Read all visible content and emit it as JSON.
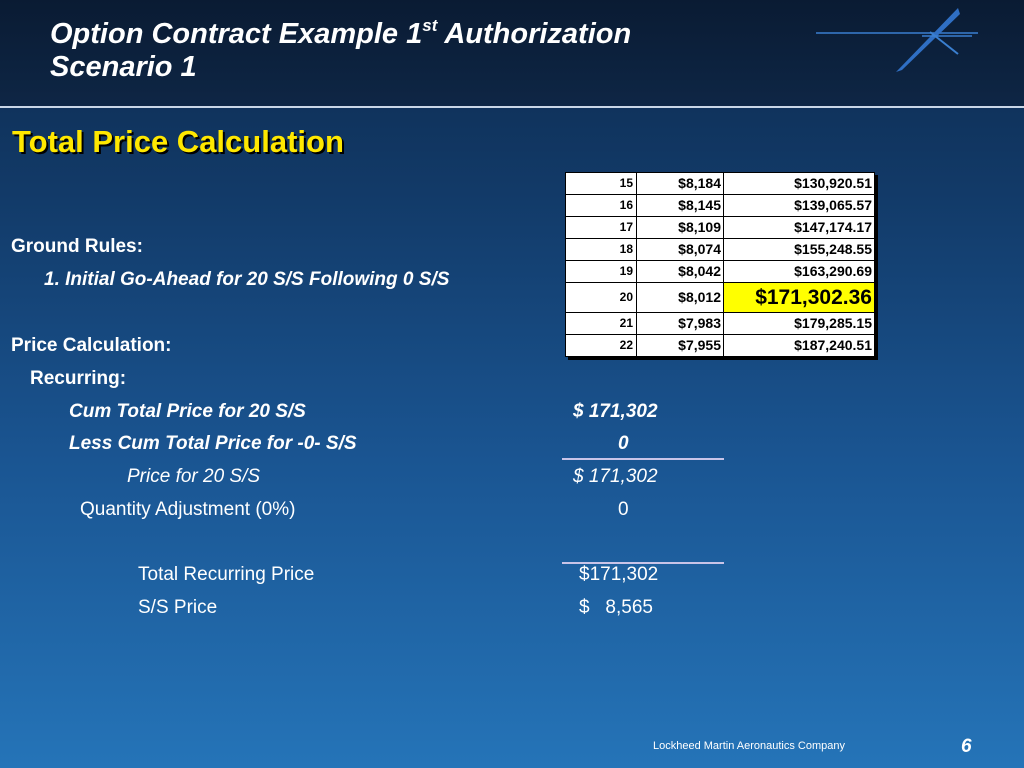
{
  "header": {
    "title_line1_pre": "Option Contract Example 1",
    "title_sup": "st",
    "title_line1_post": " Authorization",
    "title_line2": "Scenario 1"
  },
  "subtitle": "Total Price Calculation",
  "ground_rules": {
    "heading": "Ground Rules:",
    "item1": "1. Initial Go-Ahead for 20 S/S Following  0 S/S"
  },
  "price_calc": {
    "heading": "Price Calculation:",
    "recurring_heading": "Recurring:",
    "rows": [
      {
        "label": "Cum Total Price for 20 S/S",
        "value": "$ 171,302"
      },
      {
        "label": "Less Cum Total Price for -0- S/S",
        "value": "0"
      },
      {
        "label": "Price for 20 S/S",
        "value": "$ 171,302"
      },
      {
        "label": "Quantity Adjustment (0%)",
        "value": "0"
      },
      {
        "label": "Total Recurring Price",
        "value": "$171,302"
      },
      {
        "label": "S/S Price",
        "value": "$   8,565"
      }
    ]
  },
  "price_table": [
    {
      "qty": "15",
      "unit": "$8,184",
      "cum": "$130,920.51",
      "highlight": false
    },
    {
      "qty": "16",
      "unit": "$8,145",
      "cum": "$139,065.57",
      "highlight": false
    },
    {
      "qty": "17",
      "unit": "$8,109",
      "cum": "$147,174.17",
      "highlight": false
    },
    {
      "qty": "18",
      "unit": "$8,074",
      "cum": "$155,248.55",
      "highlight": false
    },
    {
      "qty": "19",
      "unit": "$8,042",
      "cum": "$163,290.69",
      "highlight": false
    },
    {
      "qty": "20",
      "unit": "$8,012",
      "cum": "$171,302.36",
      "highlight": true
    },
    {
      "qty": "21",
      "unit": "$7,983",
      "cum": "$179,285.15",
      "highlight": false
    },
    {
      "qty": "22",
      "unit": "$7,955",
      "cum": "$187,240.51",
      "highlight": false
    }
  ],
  "colors": {
    "subtitle": "#ffe800",
    "highlight_cell": "#ffff00",
    "background_top": "#0d2a4e",
    "background_bottom": "#2574b8"
  },
  "logo": {
    "icon": "lockheed-star-icon"
  },
  "footer": {
    "company": "Lockheed Martin Aeronautics Company",
    "page_number": "6"
  }
}
